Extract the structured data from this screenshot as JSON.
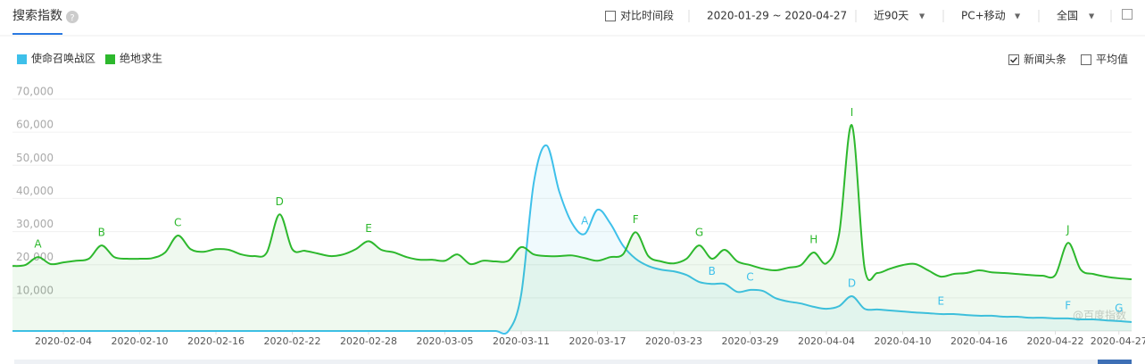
{
  "header": {
    "title": "搜索指数",
    "compare": "对比时间段",
    "date_range": "2020-01-29 ~ 2020-04-27",
    "period": "近90天",
    "device": "PC+移动",
    "region": "全国"
  },
  "options": {
    "news": "新闻头条",
    "news_checked": true,
    "average": "平均值",
    "average_checked": false
  },
  "watermark": "@百度指数",
  "chart_data": {
    "type": "line",
    "x": [
      "2020-01-31",
      "2020-02-01",
      "2020-02-02",
      "2020-02-03",
      "2020-02-04",
      "2020-02-05",
      "2020-02-06",
      "2020-02-07",
      "2020-02-08",
      "2020-02-09",
      "2020-02-10",
      "2020-02-11",
      "2020-02-12",
      "2020-02-13",
      "2020-02-14",
      "2020-02-15",
      "2020-02-16",
      "2020-02-17",
      "2020-02-18",
      "2020-02-19",
      "2020-02-20",
      "2020-02-21",
      "2020-02-22",
      "2020-02-23",
      "2020-02-24",
      "2020-02-25",
      "2020-02-26",
      "2020-02-27",
      "2020-02-28",
      "2020-02-29",
      "2020-03-01",
      "2020-03-02",
      "2020-03-03",
      "2020-03-04",
      "2020-03-05",
      "2020-03-06",
      "2020-03-07",
      "2020-03-08",
      "2020-03-09",
      "2020-03-10",
      "2020-03-11",
      "2020-03-12",
      "2020-03-13",
      "2020-03-14",
      "2020-03-15",
      "2020-03-16",
      "2020-03-17",
      "2020-03-18",
      "2020-03-19",
      "2020-03-20",
      "2020-03-21",
      "2020-03-22",
      "2020-03-23",
      "2020-03-24",
      "2020-03-25",
      "2020-03-26",
      "2020-03-27",
      "2020-03-28",
      "2020-03-29",
      "2020-03-30",
      "2020-03-31",
      "2020-04-01",
      "2020-04-02",
      "2020-04-03",
      "2020-04-04",
      "2020-04-05",
      "2020-04-06",
      "2020-04-07",
      "2020-04-08",
      "2020-04-09",
      "2020-04-10",
      "2020-04-11",
      "2020-04-12",
      "2020-04-13",
      "2020-04-14",
      "2020-04-15",
      "2020-04-16",
      "2020-04-17",
      "2020-04-18",
      "2020-04-19",
      "2020-04-20",
      "2020-04-21",
      "2020-04-22",
      "2020-04-23",
      "2020-04-24",
      "2020-04-25",
      "2020-04-26",
      "2020-04-27",
      "2020-04-28"
    ],
    "series": [
      {
        "name": "使命召唤战区",
        "color": "#3ec0ea",
        "values": [
          0,
          0,
          0,
          0,
          0,
          0,
          0,
          0,
          0,
          0,
          0,
          0,
          0,
          0,
          0,
          0,
          0,
          0,
          0,
          0,
          0,
          0,
          0,
          0,
          0,
          0,
          0,
          0,
          0,
          0,
          0,
          0,
          0,
          0,
          0,
          0,
          0,
          0,
          0,
          0,
          11000,
          45000,
          56000,
          42000,
          32500,
          29300,
          36600,
          32500,
          25800,
          21800,
          19600,
          18500,
          18000,
          16900,
          14800,
          14200,
          14200,
          11800,
          12400,
          12100,
          9900,
          8900,
          8300,
          7300,
          6700,
          7500,
          10500,
          6700,
          6500,
          6200,
          5900,
          5600,
          5400,
          5100,
          5100,
          4800,
          4600,
          4600,
          4300,
          4300,
          4000,
          4000,
          3800,
          3800,
          3500,
          3500,
          3200,
          3000,
          2700
        ]
      },
      {
        "name": "绝地求生",
        "color": "#2db82d",
        "values": [
          19600,
          19900,
          22300,
          20200,
          20700,
          21200,
          21800,
          25800,
          22300,
          21800,
          21800,
          22000,
          23700,
          28800,
          24700,
          23900,
          24700,
          24500,
          23100,
          22600,
          23700,
          35200,
          24700,
          24200,
          23400,
          22600,
          23100,
          24700,
          27100,
          24500,
          23700,
          22300,
          21500,
          21500,
          21200,
          23100,
          20200,
          21200,
          21000,
          21200,
          25300,
          23100,
          22600,
          22600,
          22800,
          22000,
          21200,
          22300,
          23100,
          29800,
          22600,
          21000,
          20400,
          21800,
          25800,
          21800,
          24500,
          21000,
          19900,
          18800,
          18300,
          19100,
          19900,
          23700,
          20400,
          29300,
          62100,
          19100,
          17500,
          18800,
          19900,
          20200,
          18300,
          16400,
          17200,
          17500,
          18300,
          17700,
          17500,
          17200,
          16900,
          16700,
          16900,
          26600,
          18500,
          17200,
          16400,
          15900,
          15600
        ]
      }
    ],
    "ylim": [
      0,
      70000
    ],
    "yticks": [
      {
        "value": 10000,
        "label": "10,000"
      },
      {
        "value": 20000,
        "label": "20,000"
      },
      {
        "value": 30000,
        "label": "30,000"
      },
      {
        "value": 40000,
        "label": "40,000"
      },
      {
        "value": 50000,
        "label": "50,000"
      },
      {
        "value": 60000,
        "label": "60,000"
      },
      {
        "value": 70000,
        "label": "70,000"
      }
    ],
    "xticks": [
      "2020-02-04",
      "2020-02-10",
      "2020-02-16",
      "2020-02-22",
      "2020-02-28",
      "2020-03-05",
      "2020-03-11",
      "2020-03-17",
      "2020-03-23",
      "2020-03-29",
      "2020-04-04",
      "2020-04-10",
      "2020-04-16",
      "2020-04-22",
      "2020-04-27"
    ],
    "grid": true,
    "annotations": [
      {
        "series": 1,
        "x": "2020-02-02",
        "text": "A"
      },
      {
        "series": 1,
        "x": "2020-02-07",
        "text": "B"
      },
      {
        "series": 1,
        "x": "2020-02-13",
        "text": "C"
      },
      {
        "series": 1,
        "x": "2020-02-21",
        "text": "D"
      },
      {
        "series": 1,
        "x": "2020-02-28",
        "text": "E"
      },
      {
        "series": 1,
        "x": "2020-03-20",
        "text": "F"
      },
      {
        "series": 1,
        "x": "2020-03-25",
        "text": "G"
      },
      {
        "series": 1,
        "x": "2020-04-03",
        "text": "H"
      },
      {
        "series": 1,
        "x": "2020-04-06",
        "text": "I"
      },
      {
        "series": 1,
        "x": "2020-04-23",
        "text": "J"
      },
      {
        "series": 0,
        "x": "2020-03-16",
        "text": "A"
      },
      {
        "series": 0,
        "x": "2020-03-26",
        "text": "B"
      },
      {
        "series": 0,
        "x": "2020-03-29",
        "text": "C"
      },
      {
        "series": 0,
        "x": "2020-04-06",
        "text": "D"
      },
      {
        "series": 0,
        "x": "2020-04-13",
        "text": "E"
      },
      {
        "series": 0,
        "x": "2020-04-23",
        "text": "F"
      },
      {
        "series": 0,
        "x": "2020-04-27",
        "text": "G"
      }
    ]
  }
}
